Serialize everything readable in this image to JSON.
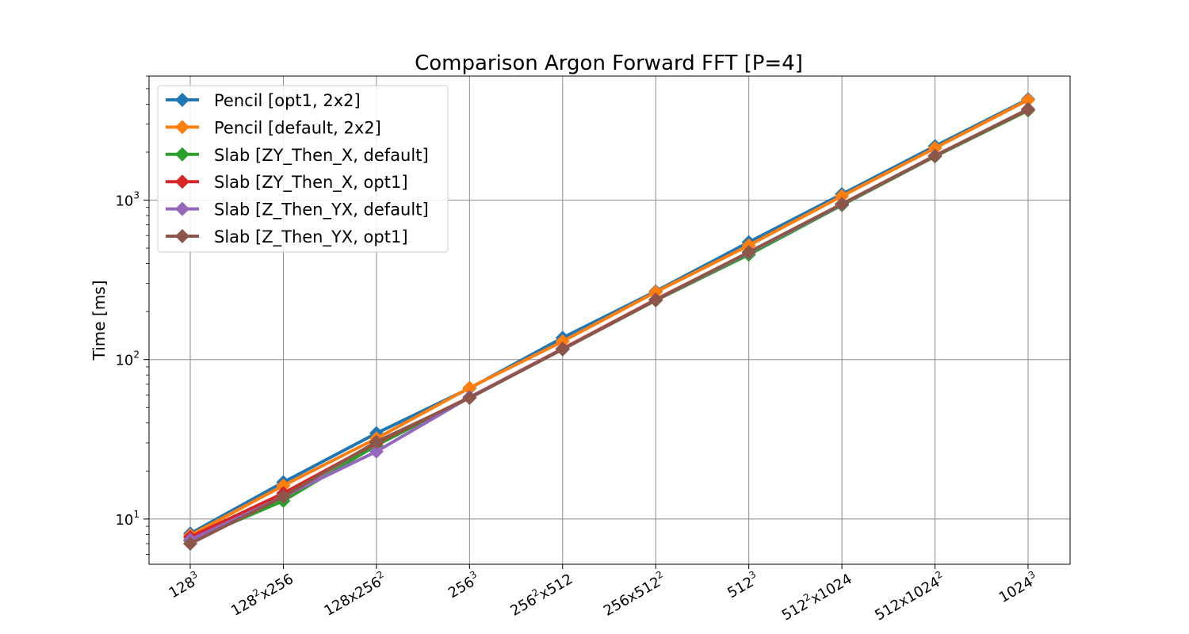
{
  "chart_data": {
    "type": "line",
    "title": "Comparison Argon Forward FFT [P=4]",
    "xlabel": "",
    "ylabel": "Time [ms]",
    "yscale": "log",
    "ylim": [
      5.2,
      6000
    ],
    "grid": true,
    "legend_position": "top-left",
    "categories": [
      {
        "base": "128",
        "sup": "3",
        "rest": "",
        "sup2": ""
      },
      {
        "base": "128",
        "sup": "2",
        "rest": "x256",
        "sup2": ""
      },
      {
        "base": "128x256",
        "sup": "2",
        "rest": "",
        "sup2": ""
      },
      {
        "base": "256",
        "sup": "3",
        "rest": "",
        "sup2": ""
      },
      {
        "base": "256",
        "sup": "2",
        "rest": "x512",
        "sup2": ""
      },
      {
        "base": "256x512",
        "sup": "2",
        "rest": "",
        "sup2": ""
      },
      {
        "base": "512",
        "sup": "3",
        "rest": "",
        "sup2": ""
      },
      {
        "base": "512",
        "sup": "2",
        "rest": "x1024",
        "sup2": ""
      },
      {
        "base": "512x1024",
        "sup": "2",
        "rest": "",
        "sup2": ""
      },
      {
        "base": "1024",
        "sup": "3",
        "rest": "",
        "sup2": ""
      }
    ],
    "yticks": [
      {
        "value": 10,
        "base": "10",
        "sup": "1"
      },
      {
        "value": 100,
        "base": "10",
        "sup": "2"
      },
      {
        "value": 1000,
        "base": "10",
        "sup": "3"
      }
    ],
    "series": [
      {
        "name": "Pencil [opt1, 2x2]",
        "color": "#1f77b4",
        "values": [
          8.1,
          17.0,
          34.5,
          66.0,
          137,
          268,
          545,
          1090,
          2180,
          4300
        ]
      },
      {
        "name": "Pencil [default, 2x2]",
        "color": "#ff7f0e",
        "values": [
          7.9,
          16.2,
          32.0,
          66.5,
          130,
          265,
          520,
          1060,
          2120,
          4250
        ]
      },
      {
        "name": "Slab [ZY_Then_X, default]",
        "color": "#2ca02c",
        "values": [
          7.3,
          13.0,
          29.0,
          57.5,
          116,
          235,
          455,
          930,
          1880,
          3650
        ]
      },
      {
        "name": "Slab [ZY_Then_X, opt1]",
        "color": "#d62728",
        "values": [
          7.7,
          14.5,
          30.0,
          58.0,
          117,
          238,
          470,
          945,
          1900,
          3700
        ]
      },
      {
        "name": "Slab [Z_Then_YX, default]",
        "color": "#9467bd",
        "values": [
          7.4,
          13.8,
          26.5,
          58.0,
          116,
          236,
          468,
          940,
          1895,
          3720
        ]
      },
      {
        "name": "Slab [Z_Then_YX, opt1]",
        "color": "#8c564b",
        "values": [
          7.0,
          13.8,
          30.5,
          57.5,
          116,
          236,
          472,
          945,
          1895,
          3720
        ]
      }
    ]
  }
}
